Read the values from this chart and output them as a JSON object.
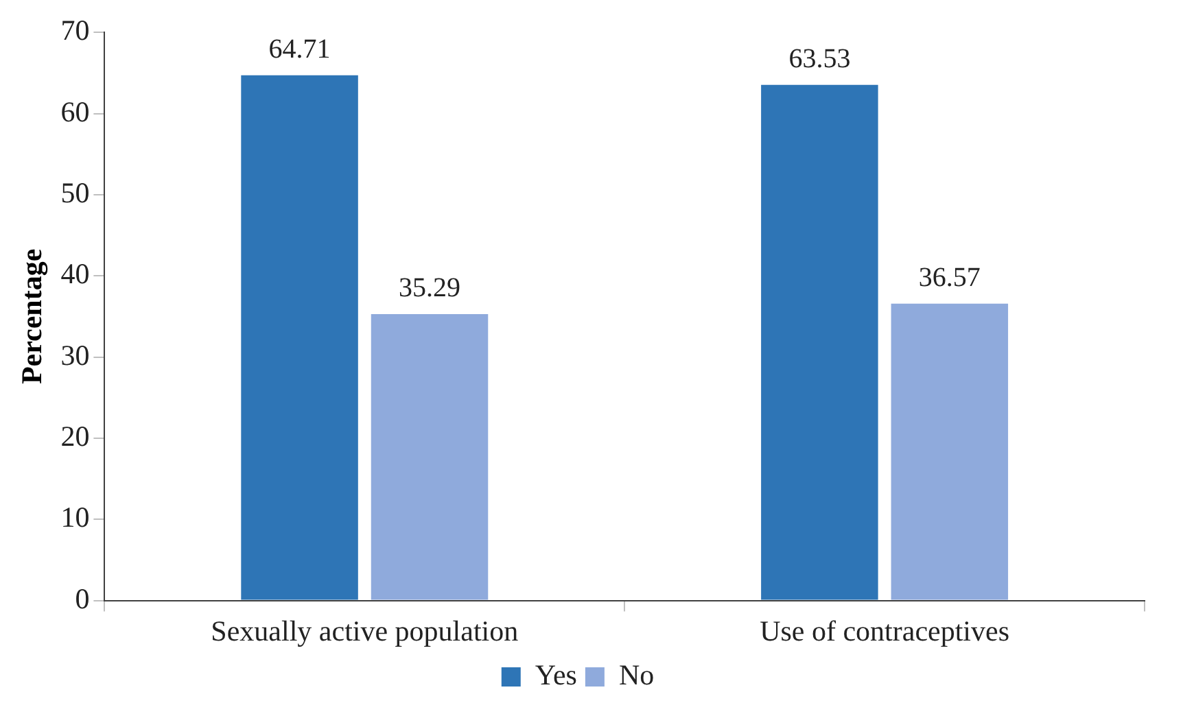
{
  "chart_data": {
    "type": "bar",
    "categories": [
      "Sexually active population",
      "Use of contraceptives"
    ],
    "series": [
      {
        "name": "Yes",
        "color": "#2e75b6",
        "values": [
          64.71,
          63.53
        ]
      },
      {
        "name": "No",
        "color": "#8faadc",
        "values": [
          35.29,
          36.57
        ]
      }
    ],
    "ylabel": "Percentage",
    "ylim": [
      0,
      70
    ],
    "yticks": [
      0,
      10,
      20,
      30,
      40,
      50,
      60,
      70
    ],
    "grid": false,
    "legend": "bottom",
    "data_labels": true
  }
}
